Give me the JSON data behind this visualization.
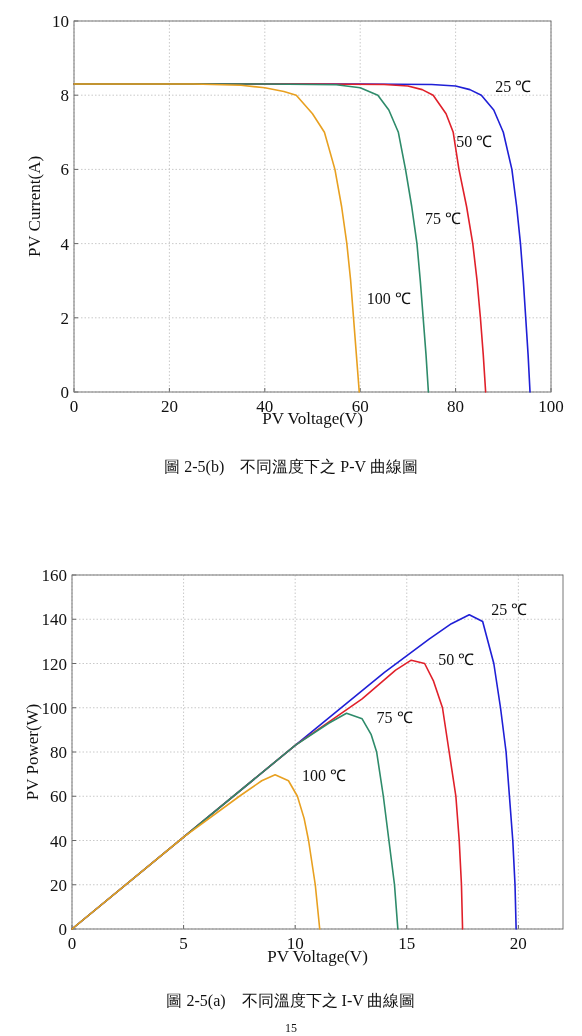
{
  "chart_data": [
    {
      "type": "line",
      "xlabel": "PV Voltage(V)",
      "ylabel": "PV Current(A)",
      "xlim": [
        0,
        100
      ],
      "ylim": [
        0,
        10
      ],
      "xticks": [
        0,
        20,
        40,
        60,
        80,
        100
      ],
      "yticks": [
        0,
        2,
        4,
        6,
        8,
        10
      ],
      "grid": true,
      "marker": "none",
      "line_style": "solid",
      "series": [
        {
          "name": "25 ℃",
          "color": "#1f1fd6",
          "x": [
            0,
            60,
            75,
            80,
            83,
            85.4,
            88,
            90,
            91.8,
            92.8,
            93.6,
            94.2,
            94.7,
            95.2,
            95.6
          ],
          "values": [
            8.3,
            8.3,
            8.29,
            8.25,
            8.15,
            8.0,
            7.6,
            7.0,
            6.0,
            5.0,
            4.0,
            3.0,
            2.0,
            1.0,
            0
          ]
        },
        {
          "name": "50 ℃",
          "color": "#e0202a",
          "x": [
            0,
            50,
            65,
            70,
            73,
            75.3,
            78,
            79.5,
            80.7,
            82.3,
            83.6,
            84.5,
            85.2,
            85.8,
            86.3
          ],
          "values": [
            8.3,
            8.3,
            8.29,
            8.25,
            8.15,
            8.0,
            7.5,
            7.0,
            6.0,
            5.0,
            4.0,
            3.0,
            2.0,
            1.0,
            0
          ]
        },
        {
          "name": "75 ℃",
          "color": "#2e8b6a",
          "x": [
            0,
            40,
            55,
            60,
            63.7,
            66,
            68,
            69.5,
            70.8,
            71.9,
            72.6,
            73.2,
            73.8,
            74.3
          ],
          "values": [
            8.3,
            8.3,
            8.28,
            8.2,
            8.0,
            7.6,
            7.0,
            6.0,
            5.0,
            4.0,
            3.0,
            2.0,
            1.0,
            0
          ]
        },
        {
          "name": "100 ℃",
          "color": "#e8a020",
          "x": [
            0,
            25,
            35,
            40,
            44,
            46.6,
            50,
            52.5,
            54.7,
            56.1,
            57.2,
            58.0,
            58.6,
            59.2,
            59.8
          ],
          "values": [
            8.3,
            8.3,
            8.27,
            8.2,
            8.1,
            8.0,
            7.5,
            7.0,
            6.0,
            5.0,
            4.0,
            3.0,
            2.0,
            1.0,
            0
          ]
        }
      ],
      "annotations": [
        "圖 2-5(b)　不同溫度下之 P-V 曲線圖"
      ]
    },
    {
      "type": "line",
      "xlabel": "PV Voltage(V)",
      "ylabel": "PV Power(W)",
      "xlim": [
        0,
        22
      ],
      "ylim": [
        0,
        160
      ],
      "xticks": [
        0,
        5,
        10,
        15,
        20
      ],
      "yticks": [
        0,
        20,
        40,
        60,
        80,
        100,
        120,
        140,
        160
      ],
      "grid": true,
      "marker": "none",
      "line_style": "solid",
      "series": [
        {
          "name": "25 ℃",
          "color": "#1f1fd6",
          "x": [
            0,
            5,
            10,
            14,
            16,
            17,
            17.8,
            18.4,
            18.9,
            19.2,
            19.45,
            19.6,
            19.75,
            19.85,
            19.9
          ],
          "values": [
            0,
            41.5,
            83,
            116,
            131,
            138,
            142,
            139,
            120,
            100,
            80,
            60,
            40,
            20,
            0
          ]
        },
        {
          "name": "50 ℃",
          "color": "#e0202a",
          "x": [
            0,
            5,
            10,
            13,
            14.5,
            15.2,
            15.8,
            16.2,
            16.6,
            16.9,
            17.2,
            17.35,
            17.45,
            17.5
          ],
          "values": [
            0,
            41.5,
            83,
            104,
            117,
            121.5,
            120,
            112,
            100,
            80,
            60,
            40,
            20,
            0
          ]
        },
        {
          "name": "75 ℃",
          "color": "#2e8b6a",
          "x": [
            0,
            5,
            10,
            11.5,
            12.3,
            13,
            13.4,
            13.65,
            13.95,
            14.2,
            14.45,
            14.6
          ],
          "values": [
            0,
            41.5,
            83,
            93,
            97.5,
            95,
            88,
            80,
            60,
            40,
            20,
            0
          ]
        },
        {
          "name": "100 ℃",
          "color": "#e8a020",
          "x": [
            0,
            5,
            7.5,
            8.5,
            9.1,
            9.7,
            10.1,
            10.4,
            10.6,
            10.9,
            11.1
          ],
          "values": [
            0,
            41.5,
            60,
            67,
            69.7,
            67,
            60,
            50,
            40,
            20,
            0
          ]
        }
      ],
      "annotations": [
        "圖 2-5(a)　不同溫度下之 I-V 曲線圖",
        "15"
      ]
    }
  ]
}
